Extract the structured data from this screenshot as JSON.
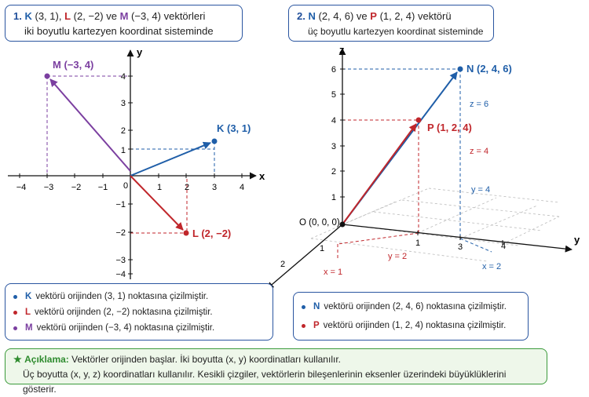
{
  "panel1": {
    "num": "1.",
    "K": "K",
    "K_coords": "(3, 1),",
    "L": "L",
    "L_coords": "(2, −2)",
    "ve": "ve",
    "M": "M",
    "M_coords": "(−3, 4) vektörleri",
    "line2": "iki boyutlu kartezyen koordinat sisteminde"
  },
  "panel2": {
    "num": "2.",
    "N": "N",
    "N_coords": "(2, 4, 6)",
    "ve": "ve",
    "P": "P",
    "P_coords": "(1, 2, 4) vektörü",
    "line2": "üç boyutlu kartezyen koordinat sisteminde"
  },
  "graph2d": {
    "x_axis": "x",
    "y_axis": "y",
    "origin": "0",
    "x_ticks": [
      "−4",
      "−3",
      "−2",
      "−1",
      "1",
      "2",
      "3",
      "4"
    ],
    "y_ticks": [
      "−4",
      "−3",
      "−2",
      "−1",
      "1",
      "2",
      "3",
      "4"
    ],
    "vectors": [
      {
        "name": "K",
        "label": "K (3, 1)",
        "x": 3,
        "y": 1,
        "color": "#1f5ea8"
      },
      {
        "name": "L",
        "label": "L (2, −2)",
        "x": 2,
        "y": -2,
        "color": "#c0262b"
      },
      {
        "name": "M",
        "label": "M (−3, 4)",
        "x": -3,
        "y": 4,
        "color": "#7b3fa0"
      }
    ]
  },
  "graph3d": {
    "x_axis": "x",
    "y_axis": "y",
    "z_axis": "z",
    "origin": "O (0, 0, 0)",
    "z_ticks": [
      "1",
      "2",
      "3",
      "4",
      "5",
      "6"
    ],
    "y_ticks": [
      "1",
      "3",
      "4"
    ],
    "x_ticks": [
      "1",
      "2"
    ],
    "N": {
      "label": "N (2, 4, 6)",
      "color": "#1f5ea8"
    },
    "P": {
      "label": "P (1, 2, 4)",
      "color": "#c0262b"
    },
    "annotations": {
      "z6": "z = 6",
      "z4": "z = 4",
      "y4": "y = 4",
      "y2": "y = 2",
      "x1": "x = 1",
      "x2": "x = 2"
    }
  },
  "info1": [
    {
      "v": "K",
      "text": "vektörü orijinden (3, 1) noktasına çizilmiştir.",
      "color": "#1f5ea8"
    },
    {
      "v": "L",
      "text": "vektörü orijinden (2, −2) noktasına çizilmiştir.",
      "color": "#c0262b"
    },
    {
      "v": "M",
      "text": "vektörü orijinden (−3, 4) noktasına çizilmiştir.",
      "color": "#7b3fa0"
    }
  ],
  "info2": [
    {
      "v": "N",
      "text": "vektörü orijinden (2, 4, 6) noktasına çizilmiştir.",
      "color": "#1f5ea8"
    },
    {
      "v": "P",
      "text": "vektörü orijinden (1, 2, 4) noktasına çizilmiştir.",
      "color": "#c0262b"
    }
  ],
  "note": {
    "star": "★",
    "label": "Açıklama:",
    "line1": "Vektörler orijinden başlar. İki boyutta (x, y) koordinatları kullanılır.",
    "line2": "Üç boyutta (x, y, z) koordinatları kullanılır. Kesikli çizgiler, vektörlerin bileşenlerinin eksenler üzerindeki büyüklüklerini gösterir."
  }
}
